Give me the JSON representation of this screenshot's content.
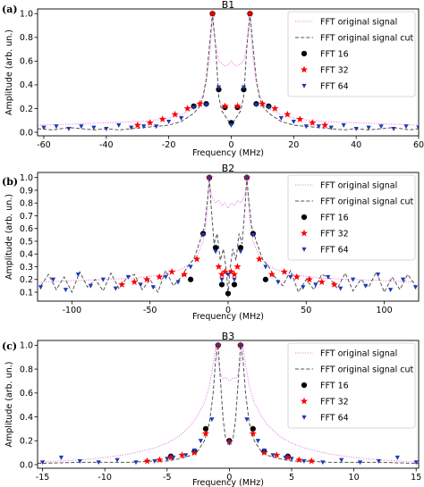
{
  "chart_data": [
    {
      "panel_label": "(a)",
      "type": "line",
      "title": "B1",
      "xlabel": "Frequency (MHz)",
      "ylabel": "Amplitude (arb. un.)",
      "xlim": [
        -62,
        60
      ],
      "ylim": [
        -0.03,
        1.04
      ],
      "xticks": [
        -60,
        -40,
        -20,
        0,
        20,
        40,
        60
      ],
      "yticks": [
        0.0,
        0.2,
        0.4,
        0.6,
        0.8,
        1.0
      ],
      "legend_position": "upper-right",
      "peak": 6,
      "series": [
        {
          "name": "FFT  original signal",
          "style": "dotted",
          "color": "#ee82ee",
          "x": [
            -62,
            -50,
            -40,
            -30,
            -25,
            -20,
            -16,
            -12,
            -10,
            -9,
            -8,
            -7,
            -6.5,
            -6,
            -5.5,
            -5,
            -4,
            -3,
            -2,
            -1,
            0,
            1,
            2,
            3,
            4,
            5,
            5.5,
            6,
            6.5,
            7,
            8,
            9,
            10,
            12,
            16,
            20,
            25,
            30,
            40,
            50,
            60
          ],
          "y": [
            0.06,
            0.07,
            0.08,
            0.09,
            0.1,
            0.12,
            0.15,
            0.2,
            0.26,
            0.32,
            0.42,
            0.62,
            0.8,
            0.97,
            0.86,
            0.74,
            0.6,
            0.58,
            0.56,
            0.57,
            0.6,
            0.57,
            0.56,
            0.58,
            0.6,
            0.74,
            0.86,
            0.97,
            0.8,
            0.62,
            0.42,
            0.32,
            0.26,
            0.2,
            0.15,
            0.12,
            0.1,
            0.09,
            0.08,
            0.07,
            0.06
          ]
        },
        {
          "name": "FFT  original signal cut",
          "style": "dashed",
          "color": "#555555",
          "x": [
            -62,
            -57,
            -52,
            -48,
            -44,
            -40,
            -36,
            -32,
            -28,
            -24,
            -20,
            -16,
            -12,
            -10,
            -9,
            -8,
            -7,
            -6,
            -5,
            -4,
            -3,
            -2,
            -1,
            0,
            1,
            2,
            3,
            4,
            5,
            6,
            7,
            8,
            9,
            10,
            12,
            16,
            20,
            24,
            28,
            32,
            36,
            40,
            44,
            48,
            52,
            57,
            60
          ],
          "y": [
            0.03,
            0.02,
            0.04,
            0.03,
            0.02,
            0.03,
            0.02,
            0.03,
            0.04,
            0.05,
            0.06,
            0.09,
            0.16,
            0.22,
            0.3,
            0.45,
            0.72,
            1.0,
            0.72,
            0.3,
            0.18,
            0.14,
            0.1,
            0.05,
            0.1,
            0.14,
            0.18,
            0.3,
            0.72,
            1.0,
            0.72,
            0.45,
            0.3,
            0.22,
            0.16,
            0.09,
            0.06,
            0.05,
            0.04,
            0.03,
            0.02,
            0.03,
            0.02,
            0.03,
            0.04,
            0.02,
            0.03
          ]
        },
        {
          "name": "FFT 16",
          "marker": "circle",
          "color": "#000000",
          "x": [
            -12,
            -8,
            -6,
            -4,
            -2,
            0,
            2,
            4,
            6,
            8,
            12
          ],
          "y": [
            0.22,
            0.24,
            1.0,
            0.36,
            0.21,
            0.08,
            0.21,
            0.36,
            1.0,
            0.24,
            0.22
          ]
        },
        {
          "name": "FFT 32",
          "marker": "star",
          "color": "#ff0000",
          "x": [
            -30,
            -26,
            -22,
            -18,
            -14,
            -10,
            -6,
            -2,
            2,
            6,
            10,
            14,
            18,
            22,
            26,
            30
          ],
          "y": [
            0.06,
            0.08,
            0.11,
            0.15,
            0.2,
            0.24,
            1.0,
            0.22,
            0.22,
            1.0,
            0.24,
            0.2,
            0.15,
            0.11,
            0.08,
            0.06
          ]
        },
        {
          "name": "FFT 64",
          "marker": "triangle-down",
          "color": "#1f3ab4",
          "x": [
            -60,
            -56,
            -52,
            -48,
            -44,
            -40,
            -36,
            -32,
            -28,
            -24,
            -20,
            -16,
            -12,
            -8,
            -4,
            0,
            4,
            8,
            12,
            16,
            20,
            24,
            28,
            32,
            36,
            40,
            44,
            48,
            52,
            56,
            60
          ],
          "y": [
            0.04,
            0.05,
            0.03,
            0.05,
            0.04,
            0.03,
            0.06,
            0.04,
            0.05,
            0.05,
            0.09,
            0.12,
            0.21,
            0.23,
            0.38,
            0.06,
            0.38,
            0.23,
            0.21,
            0.12,
            0.09,
            0.05,
            0.05,
            0.04,
            0.06,
            0.03,
            0.04,
            0.05,
            0.03,
            0.05,
            0.04
          ]
        }
      ]
    },
    {
      "panel_label": "(b)",
      "type": "line",
      "title": "B2",
      "xlabel": "Frequency (MHz)",
      "ylabel": "Amplitude (arb. un.)",
      "xlim": [
        -122,
        122
      ],
      "ylim": [
        0.03,
        1.04
      ],
      "xticks": [
        -100,
        -50,
        0,
        50,
        100
      ],
      "yticks": [
        0.1,
        0.2,
        0.3,
        0.4,
        0.5,
        0.6,
        0.7,
        0.8,
        0.9,
        1.0
      ],
      "legend_position": "upper-right",
      "peak": 12,
      "series": [
        {
          "name": "FFT  original signal",
          "style": "dotted",
          "color": "#ee82ee",
          "x": [
            -120,
            -100,
            -80,
            -60,
            -40,
            -30,
            -25,
            -20,
            -16,
            -14,
            -13,
            -12,
            -11,
            -10,
            -8,
            -6,
            -4,
            -2,
            0,
            2,
            4,
            6,
            8,
            10,
            11,
            12,
            13,
            14,
            16,
            20,
            25,
            30,
            40,
            60,
            80,
            100,
            120
          ],
          "y": [
            0.18,
            0.19,
            0.2,
            0.21,
            0.24,
            0.28,
            0.32,
            0.38,
            0.5,
            0.66,
            0.82,
            0.98,
            0.88,
            0.84,
            0.8,
            0.82,
            0.78,
            0.8,
            0.76,
            0.8,
            0.78,
            0.82,
            0.8,
            0.84,
            0.88,
            0.98,
            0.82,
            0.66,
            0.5,
            0.38,
            0.32,
            0.28,
            0.24,
            0.21,
            0.2,
            0.19,
            0.18
          ]
        },
        {
          "name": "FFT  original signal cut",
          "style": "dashed",
          "color": "#555555",
          "x": [
            -120,
            -115,
            -110,
            -105,
            -100,
            -95,
            -90,
            -85,
            -80,
            -75,
            -70,
            -65,
            -60,
            -55,
            -50,
            -45,
            -40,
            -35,
            -30,
            -26,
            -22,
            -18,
            -15,
            -13,
            -12,
            -11,
            -9,
            -7,
            -5,
            -3,
            -1,
            0,
            1,
            3,
            5,
            7,
            9,
            11,
            12,
            13,
            15,
            18,
            22,
            26,
            30,
            35,
            40,
            45,
            50,
            55,
            60,
            65,
            70,
            75,
            80,
            85,
            90,
            95,
            100,
            105,
            110,
            115,
            120
          ],
          "y": [
            0.15,
            0.24,
            0.12,
            0.22,
            0.1,
            0.26,
            0.14,
            0.2,
            0.11,
            0.25,
            0.13,
            0.21,
            0.24,
            0.12,
            0.2,
            0.1,
            0.27,
            0.15,
            0.22,
            0.3,
            0.36,
            0.5,
            0.62,
            0.85,
            1.0,
            0.8,
            0.48,
            0.56,
            0.35,
            0.44,
            0.26,
            0.06,
            0.26,
            0.44,
            0.35,
            0.56,
            0.48,
            0.8,
            1.0,
            0.85,
            0.62,
            0.5,
            0.36,
            0.3,
            0.22,
            0.15,
            0.27,
            0.1,
            0.2,
            0.12,
            0.24,
            0.21,
            0.13,
            0.25,
            0.11,
            0.2,
            0.14,
            0.26,
            0.1,
            0.22,
            0.12,
            0.24,
            0.15
          ]
        },
        {
          "name": "FFT 16",
          "marker": "circle",
          "color": "#000000",
          "x": [
            -24,
            -16,
            -12,
            -8,
            -4,
            0,
            4,
            8,
            12,
            16,
            24
          ],
          "y": [
            0.2,
            0.56,
            1.0,
            0.45,
            0.16,
            0.09,
            0.16,
            0.45,
            1.0,
            0.56,
            0.2
          ]
        },
        {
          "name": "FFT 32",
          "marker": "star",
          "color": "#ff0000",
          "x": [
            -68,
            -60,
            -52,
            -44,
            -36,
            -28,
            -20,
            -12,
            -6,
            -4,
            -2,
            2,
            4,
            6,
            12,
            20,
            28,
            36,
            44,
            52,
            60,
            68
          ],
          "y": [
            0.16,
            0.18,
            0.2,
            0.22,
            0.26,
            0.24,
            0.36,
            1.0,
            0.3,
            0.24,
            0.26,
            0.26,
            0.24,
            0.3,
            1.0,
            0.36,
            0.24,
            0.26,
            0.22,
            0.2,
            0.18,
            0.16
          ]
        },
        {
          "name": "FFT 64",
          "marker": "triangle-down",
          "color": "#1f3ab4",
          "x": [
            -120,
            -112,
            -104,
            -96,
            -88,
            -80,
            -72,
            -64,
            -56,
            -48,
            -40,
            -32,
            -24,
            -16,
            -12,
            -8,
            -4,
            0,
            4,
            8,
            12,
            16,
            24,
            32,
            40,
            48,
            56,
            64,
            72,
            80,
            88,
            96,
            104,
            112,
            120
          ],
          "y": [
            0.14,
            0.2,
            0.12,
            0.24,
            0.15,
            0.2,
            0.13,
            0.22,
            0.16,
            0.14,
            0.22,
            0.18,
            0.3,
            0.55,
            1.0,
            0.42,
            0.2,
            0.24,
            0.2,
            0.42,
            1.0,
            0.55,
            0.3,
            0.18,
            0.22,
            0.14,
            0.16,
            0.22,
            0.13,
            0.2,
            0.15,
            0.24,
            0.12,
            0.2,
            0.14
          ]
        }
      ]
    },
    {
      "panel_label": "(c)",
      "type": "line",
      "title": "B3",
      "xlabel": "Frequency (MHz)",
      "ylabel": "Amplitude (arb. un.)",
      "xlim": [
        -15.4,
        15.2
      ],
      "ylim": [
        -0.03,
        1.04
      ],
      "xticks": [
        -15,
        -10,
        -5,
        0,
        5,
        10,
        15
      ],
      "yticks": [
        0.0,
        0.2,
        0.4,
        0.6,
        0.8,
        1.0
      ],
      "legend_position": "upper-right",
      "peak": 0.9,
      "series": [
        {
          "name": "FFT  original signal",
          "style": "dotted",
          "color": "#ee82ee",
          "x": [
            -15.4,
            -12,
            -10,
            -8,
            -6,
            -5,
            -4,
            -3,
            -2.5,
            -2,
            -1.6,
            -1.3,
            -1.1,
            -0.9,
            -0.7,
            -0.5,
            -0.3,
            0,
            0.3,
            0.5,
            0.7,
            0.9,
            1.1,
            1.3,
            1.6,
            2,
            2.5,
            3,
            4,
            5,
            6,
            8,
            10,
            12,
            15.2
          ],
          "y": [
            0.02,
            0.04,
            0.06,
            0.09,
            0.14,
            0.18,
            0.24,
            0.34,
            0.42,
            0.52,
            0.66,
            0.84,
            0.98,
            0.86,
            0.76,
            0.72,
            0.73,
            0.7,
            0.73,
            0.72,
            0.76,
            0.86,
            0.98,
            0.84,
            0.66,
            0.52,
            0.42,
            0.34,
            0.24,
            0.18,
            0.14,
            0.09,
            0.06,
            0.04,
            0.02
          ]
        },
        {
          "name": "FFT  original signal cut",
          "style": "dashed",
          "color": "#555555",
          "x": [
            -15.4,
            -12,
            -8,
            -6,
            -5,
            -4,
            -3,
            -2.5,
            -2,
            -1.6,
            -1.3,
            -1.1,
            -0.9,
            -0.7,
            -0.5,
            -0.3,
            0,
            0.3,
            0.5,
            0.7,
            0.9,
            1.1,
            1.3,
            1.6,
            2,
            2.5,
            3,
            4,
            5,
            6,
            8,
            12,
            15.2
          ],
          "y": [
            0.01,
            0.02,
            0.02,
            0.03,
            0.03,
            0.05,
            0.08,
            0.12,
            0.2,
            0.35,
            0.6,
            0.88,
            1.0,
            0.68,
            0.38,
            0.22,
            0.18,
            0.22,
            0.38,
            0.68,
            1.0,
            0.88,
            0.6,
            0.35,
            0.2,
            0.12,
            0.08,
            0.05,
            0.03,
            0.03,
            0.02,
            0.02,
            0.01
          ]
        },
        {
          "name": "FFT 16",
          "marker": "circle",
          "color": "#000000",
          "x": [
            -4.7,
            -2.8,
            -1.9,
            -0.9,
            0,
            0.9,
            1.9,
            2.8,
            4.7
          ],
          "y": [
            0.07,
            0.11,
            0.3,
            1.0,
            0.2,
            1.0,
            0.3,
            0.11,
            0.07
          ]
        },
        {
          "name": "FFT 32",
          "marker": "star",
          "color": "#ff0000",
          "x": [
            -6.6,
            -5.6,
            -4.7,
            -3.8,
            -2.8,
            -1.9,
            -0.9,
            0,
            0.9,
            1.9,
            2.8,
            3.8,
            4.7,
            5.6,
            6.6
          ],
          "y": [
            0.03,
            0.04,
            0.06,
            0.08,
            0.1,
            0.26,
            1.0,
            0.19,
            1.0,
            0.26,
            0.1,
            0.08,
            0.06,
            0.04,
            0.03
          ]
        },
        {
          "name": "FFT 64",
          "marker": "triangle-down",
          "color": "#1f3ab4",
          "x": [
            -15,
            -13.5,
            -12,
            -10.5,
            -9,
            -7.5,
            -6,
            -5,
            -4.5,
            -3.5,
            -2.8,
            -2.3,
            -1.4,
            -0.9,
            0,
            0.9,
            1.4,
            2.3,
            2.8,
            3.5,
            4.5,
            5,
            6,
            7.5,
            9,
            10.5,
            12,
            13.5,
            15
          ],
          "y": [
            0.02,
            0.06,
            0.03,
            0.02,
            0.04,
            0.02,
            0.03,
            0.05,
            0.06,
            0.08,
            0.12,
            0.2,
            0.38,
            1.0,
            0.18,
            1.0,
            0.38,
            0.2,
            0.12,
            0.08,
            0.06,
            0.05,
            0.03,
            0.02,
            0.04,
            0.02,
            0.03,
            0.06,
            0.02
          ]
        }
      ]
    }
  ]
}
